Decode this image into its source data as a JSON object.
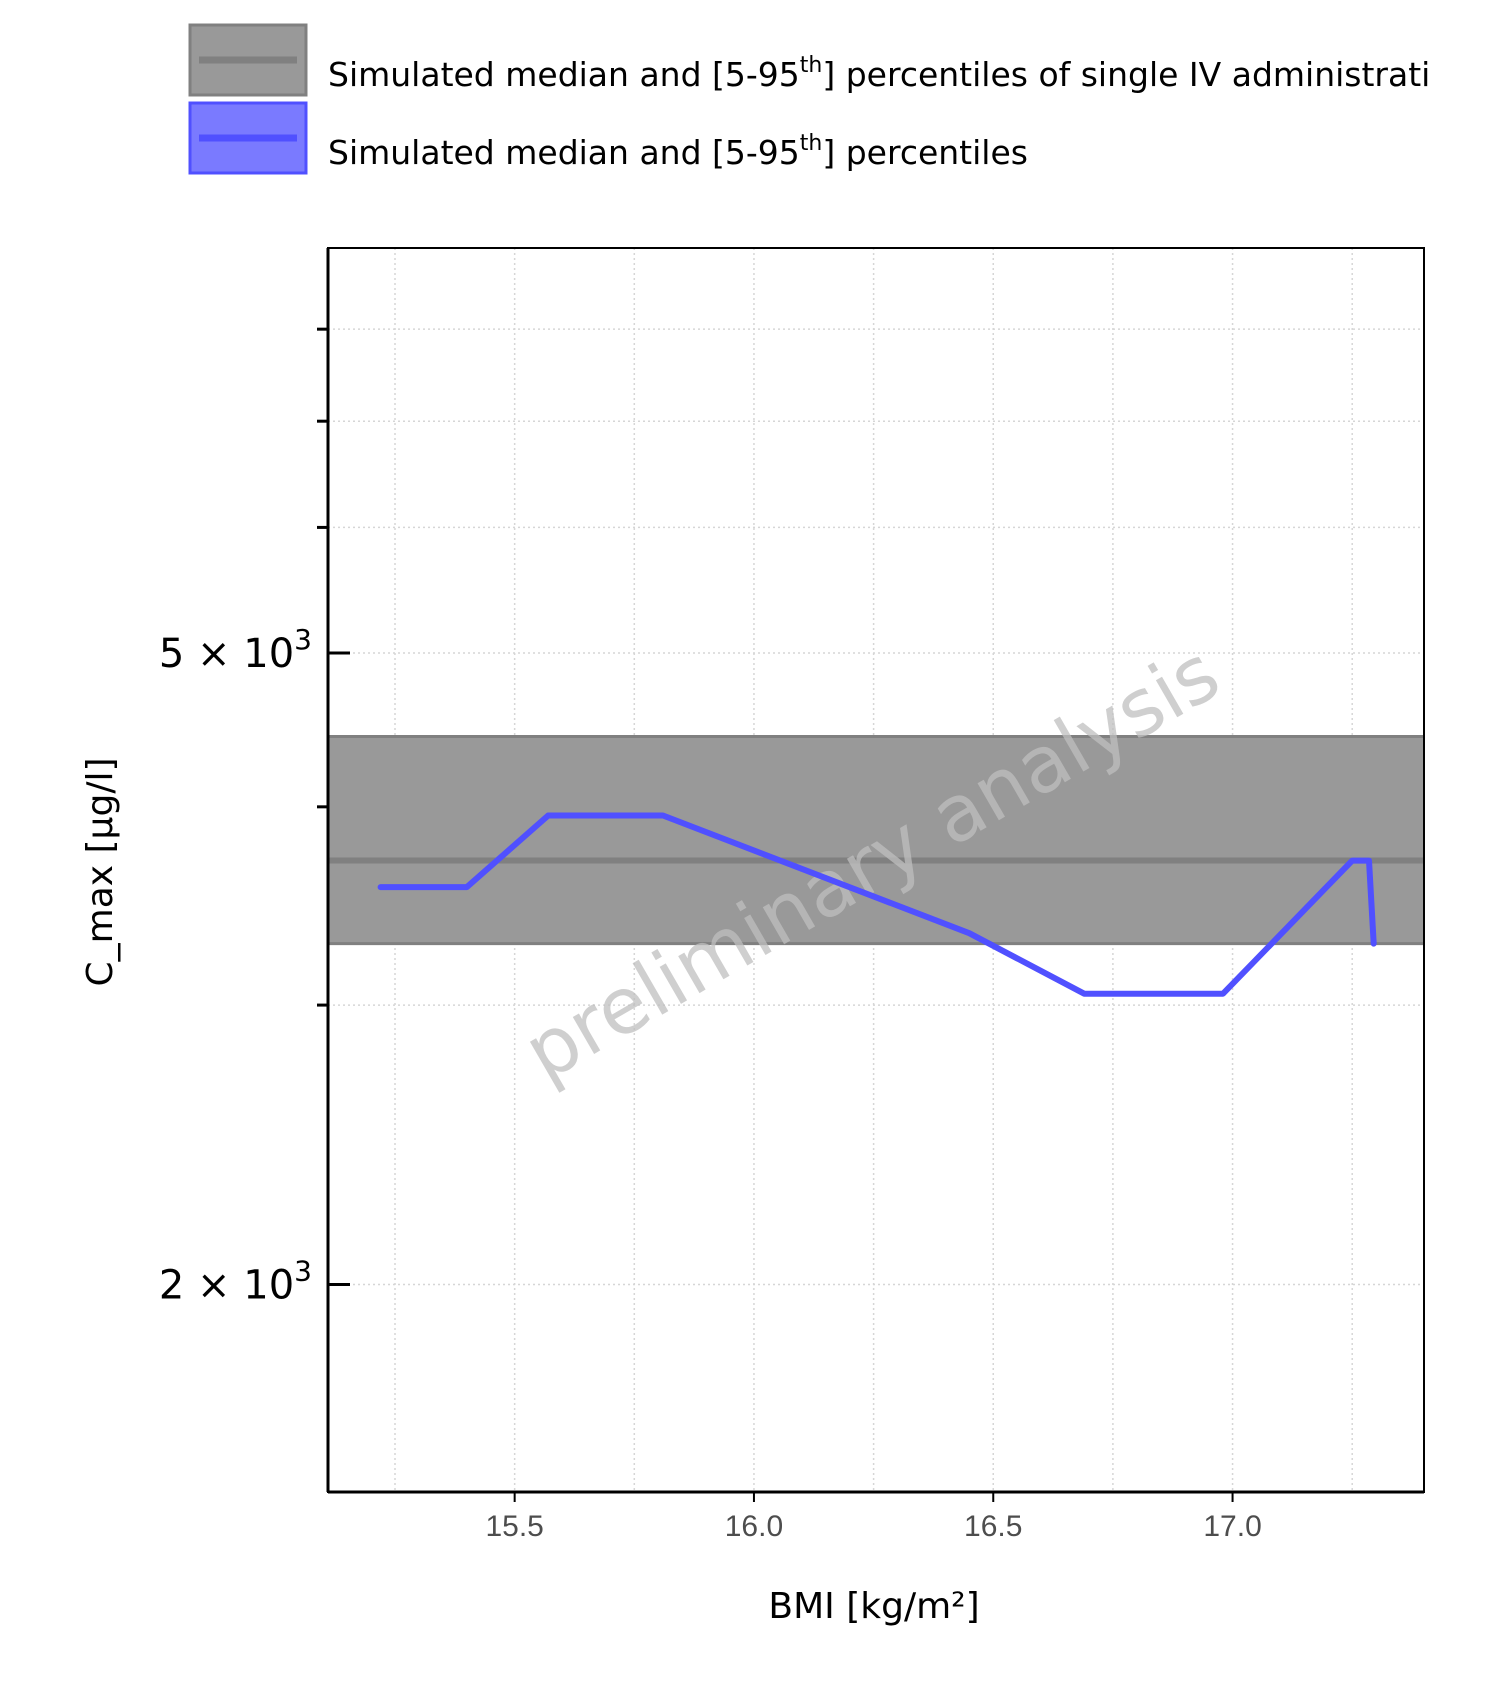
{
  "chart_data": {
    "type": "line",
    "xlabel": "BMI [kg/m²]",
    "ylabel": "C_max [µg/l]",
    "x_ticks": [
      15.5,
      16.0,
      16.5,
      17.0
    ],
    "x_tick_labels": [
      "15.5",
      "16.0",
      "16.5",
      "17.0"
    ],
    "xlim": [
      15.11,
      17.4
    ],
    "y_scale": "log",
    "ylim": [
      1480,
      9000
    ],
    "y_major_ticks": [
      {
        "value": 2000,
        "mantissa": "2",
        "base": "10",
        "exponent": "3"
      },
      {
        "value": 5000,
        "mantissa": "5",
        "base": "10",
        "exponent": "3"
      }
    ],
    "y_minor_ticks": [
      3000,
      4000,
      6000,
      7000,
      8000
    ],
    "grid": true,
    "legend_placement": "top",
    "watermark": "preliminary analysis",
    "reference_band": {
      "name": "Simulated median and [5-95th] percentiles of single IV administrati",
      "name_parts": [
        "Simulated median and [5-95",
        "th",
        "] percentiles of single IV administrati"
      ],
      "median": 3700,
      "p5": 3280,
      "p95": 4430,
      "color": "#999999",
      "line_color": "#808080"
    },
    "series": [
      {
        "name": "Simulated median and [5-95th] percentiles",
        "name_parts": [
          "Simulated median and [5-95",
          "th",
          "] percentiles"
        ],
        "color": "#5050ff",
        "x": [
          15.22,
          15.4,
          15.57,
          15.81,
          16.45,
          16.69,
          16.98,
          17.25,
          17.285,
          17.295
        ],
        "y": [
          3560,
          3560,
          3950,
          3950,
          3330,
          3050,
          3050,
          3700,
          3700,
          3280
        ]
      }
    ]
  }
}
